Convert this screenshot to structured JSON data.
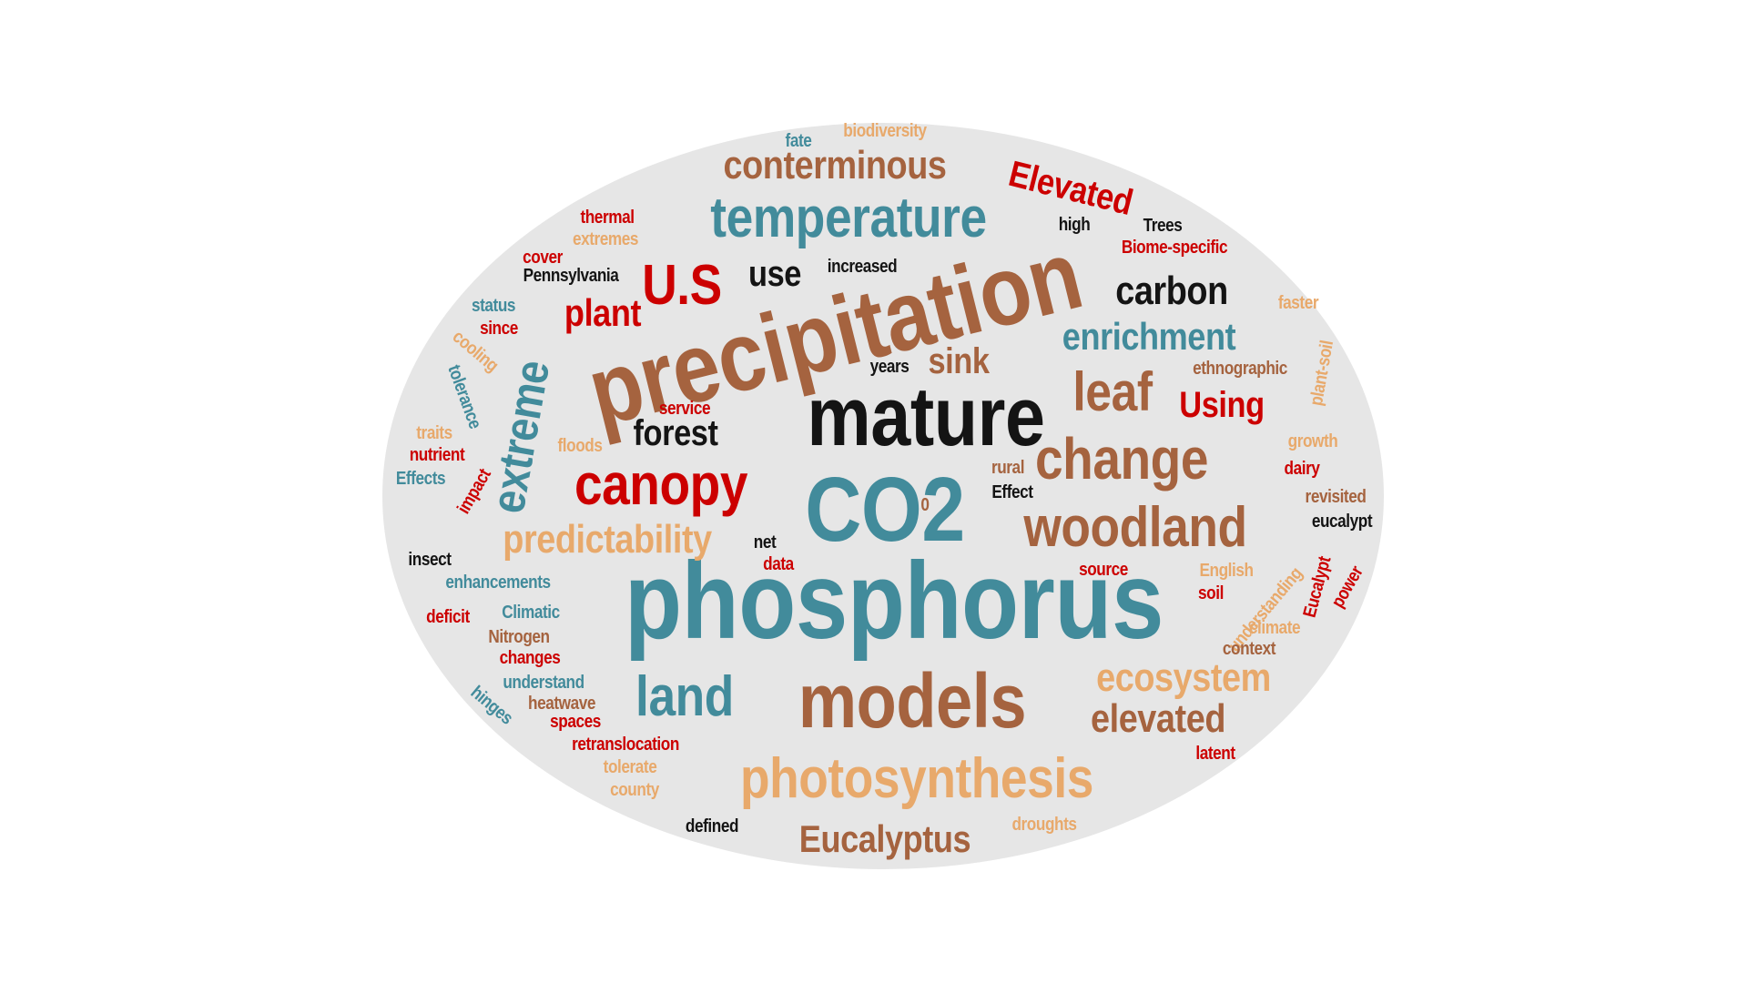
{
  "colors": {
    "background": "#ffffff",
    "ellipse": "#e6e6e6",
    "teal": "#428b9b",
    "brown": "#a5633f",
    "red": "#cc0000",
    "black": "#141414",
    "tan": "#e8a96b"
  },
  "words": [
    {
      "text": "phosphorus",
      "color": "teal",
      "weight": 100
    },
    {
      "text": "precipitation",
      "color": "brown",
      "weight": 92
    },
    {
      "text": "CO2",
      "color": "teal",
      "weight": 90
    },
    {
      "text": "mature",
      "color": "black",
      "weight": 80
    },
    {
      "text": "models",
      "color": "brown",
      "weight": 74
    },
    {
      "text": "photosynthesis",
      "color": "tan",
      "weight": 58
    },
    {
      "text": "temperature",
      "color": "teal",
      "weight": 55
    },
    {
      "text": "canopy",
      "color": "red",
      "weight": 56
    },
    {
      "text": "change",
      "color": "brown",
      "weight": 55
    },
    {
      "text": "woodland",
      "color": "brown",
      "weight": 54
    },
    {
      "text": "land",
      "color": "teal",
      "weight": 52
    },
    {
      "text": "leaf",
      "color": "brown",
      "weight": 52
    },
    {
      "text": "U.S",
      "color": "red",
      "weight": 50
    },
    {
      "text": "extreme",
      "color": "teal",
      "weight": 46
    },
    {
      "text": "conterminous",
      "color": "brown",
      "weight": 40
    },
    {
      "text": "predictability",
      "color": "tan",
      "weight": 40
    },
    {
      "text": "ecosystem",
      "color": "tan",
      "weight": 40
    },
    {
      "text": "elevated",
      "color": "brown",
      "weight": 40
    },
    {
      "text": "Elevated",
      "color": "red",
      "weight": 36
    },
    {
      "text": "carbon",
      "color": "black",
      "weight": 38
    },
    {
      "text": "enrichment",
      "color": "teal",
      "weight": 37
    },
    {
      "text": "Eucalyptus",
      "color": "brown",
      "weight": 37
    },
    {
      "text": "plant",
      "color": "red",
      "weight": 34
    },
    {
      "text": "use",
      "color": "black",
      "weight": 35
    },
    {
      "text": "forest",
      "color": "black",
      "weight": 33
    },
    {
      "text": "Using",
      "color": "red",
      "weight": 33
    },
    {
      "text": "sink",
      "color": "brown",
      "weight": 32
    },
    {
      "text": "biodiversity",
      "color": "tan",
      "weight": 14
    },
    {
      "text": "fate",
      "color": "teal",
      "weight": 14
    },
    {
      "text": "thermal",
      "color": "red",
      "weight": 14
    },
    {
      "text": "extremes",
      "color": "tan",
      "weight": 14
    },
    {
      "text": "high",
      "color": "black",
      "weight": 14
    },
    {
      "text": "Trees",
      "color": "black",
      "weight": 14
    },
    {
      "text": "Biome-specific",
      "color": "red",
      "weight": 14
    },
    {
      "text": "cover",
      "color": "red",
      "weight": 14
    },
    {
      "text": "Pennsylvania",
      "color": "black",
      "weight": 14
    },
    {
      "text": "increased",
      "color": "black",
      "weight": 14
    },
    {
      "text": "faster",
      "color": "tan",
      "weight": 14
    },
    {
      "text": "status",
      "color": "teal",
      "weight": 14
    },
    {
      "text": "since",
      "color": "red",
      "weight": 14
    },
    {
      "text": "cooling",
      "color": "tan",
      "weight": 14
    },
    {
      "text": "tolerance",
      "color": "teal",
      "weight": 14
    },
    {
      "text": "years",
      "color": "black",
      "weight": 14
    },
    {
      "text": "ethnographic",
      "color": "brown",
      "weight": 14
    },
    {
      "text": "plant-soil",
      "color": "tan",
      "weight": 14
    },
    {
      "text": "service",
      "color": "red",
      "weight": 14
    },
    {
      "text": "traits",
      "color": "tan",
      "weight": 14
    },
    {
      "text": "nutrient",
      "color": "red",
      "weight": 14
    },
    {
      "text": "floods",
      "color": "tan",
      "weight": 14
    },
    {
      "text": "growth",
      "color": "tan",
      "weight": 14
    },
    {
      "text": "dairy",
      "color": "red",
      "weight": 14
    },
    {
      "text": "Effects",
      "color": "teal",
      "weight": 14
    },
    {
      "text": "impact",
      "color": "red",
      "weight": 14
    },
    {
      "text": "rural",
      "color": "brown",
      "weight": 14
    },
    {
      "text": "Effect",
      "color": "black",
      "weight": 14
    },
    {
      "text": "0",
      "color": "brown",
      "weight": 14
    },
    {
      "text": "revisited",
      "color": "brown",
      "weight": 14
    },
    {
      "text": "eucalypt",
      "color": "black",
      "weight": 14
    },
    {
      "text": "insect",
      "color": "black",
      "weight": 14
    },
    {
      "text": "net",
      "color": "black",
      "weight": 14
    },
    {
      "text": "data",
      "color": "red",
      "weight": 14
    },
    {
      "text": "source",
      "color": "red",
      "weight": 14
    },
    {
      "text": "English",
      "color": "tan",
      "weight": 14
    },
    {
      "text": "understanding",
      "color": "tan",
      "weight": 14
    },
    {
      "text": "Eucalypt",
      "color": "red",
      "weight": 14
    },
    {
      "text": "power",
      "color": "red",
      "weight": 14
    },
    {
      "text": "enhancements",
      "color": "teal",
      "weight": 14
    },
    {
      "text": "soil",
      "color": "red",
      "weight": 14
    },
    {
      "text": "deficit",
      "color": "red",
      "weight": 14
    },
    {
      "text": "Climatic",
      "color": "teal",
      "weight": 14
    },
    {
      "text": "climate",
      "color": "tan",
      "weight": 14
    },
    {
      "text": "Nitrogen",
      "color": "brown",
      "weight": 14
    },
    {
      "text": "context",
      "color": "brown",
      "weight": 14
    },
    {
      "text": "changes",
      "color": "red",
      "weight": 14
    },
    {
      "text": "understand",
      "color": "teal",
      "weight": 14
    },
    {
      "text": "hinges",
      "color": "teal",
      "weight": 14
    },
    {
      "text": "heatwave",
      "color": "brown",
      "weight": 14
    },
    {
      "text": "spaces",
      "color": "red",
      "weight": 14
    },
    {
      "text": "retranslocation",
      "color": "red",
      "weight": 14
    },
    {
      "text": "latent",
      "color": "red",
      "weight": 14
    },
    {
      "text": "tolerate",
      "color": "tan",
      "weight": 14
    },
    {
      "text": "county",
      "color": "tan",
      "weight": 14
    },
    {
      "text": "defined",
      "color": "black",
      "weight": 14
    },
    {
      "text": "droughts",
      "color": "tan",
      "weight": 14
    }
  ]
}
